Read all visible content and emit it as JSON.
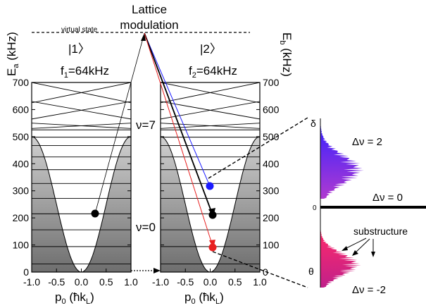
{
  "header": {
    "title_line1": "Lattice",
    "title_line2": "modulation",
    "virtual_state": "virtual state"
  },
  "left_panel": {
    "state": "|1〉",
    "frequency": "f",
    "frequency_sub": "1",
    "frequency_value": "=64kHz",
    "ylabel": "E",
    "ylabel_sub": "a",
    "ylabel_unit": " (kHz)",
    "xlabel": "p",
    "xlabel_sub": "0",
    "xlabel_unit": " (ħk",
    "xlabel_unit_sub": "L",
    "xlabel_close": ")",
    "yticks": [
      "0",
      "100",
      "200",
      "300",
      "400",
      "500",
      "600",
      "700"
    ],
    "xticks": [
      "-1.0",
      "-0.5",
      "0.0",
      "0.5",
      "1.0"
    ]
  },
  "right_panel": {
    "state": "|2〉",
    "frequency": "f",
    "frequency_sub": "2",
    "frequency_value": "=64kHz",
    "ylabel": "E",
    "ylabel_sub": "b",
    "ylabel_unit": " (kHz)",
    "xlabel": "p",
    "xlabel_sub": "0",
    "xlabel_unit": " (ħk",
    "xlabel_unit_sub": "L",
    "xlabel_close": ")",
    "yticks": [
      "0",
      "100",
      "200",
      "300",
      "400",
      "500",
      "600",
      "700"
    ],
    "xticks": [
      "-1.0",
      "-0.5",
      "0.0",
      "0.5",
      "1.0"
    ]
  },
  "band_labels": {
    "upper": "ν=7",
    "lower": "ν=0"
  },
  "spectrum": {
    "delta": "δ",
    "zero": "0",
    "theta": "θ",
    "label_plus": "Δν = 2",
    "label_zero": "Δν = 0",
    "label_minus": "Δν = -2",
    "substructure": "substructure"
  },
  "colors": {
    "blue": "#1a1aff",
    "red": "#e82020",
    "black": "#000000",
    "magenta": "#e0206a",
    "violet": "#6a2aff"
  }
}
